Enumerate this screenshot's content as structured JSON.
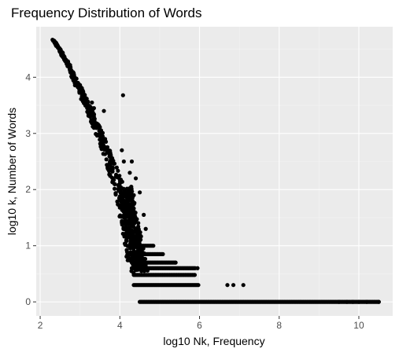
{
  "colors": {
    "panel": "#ebebeb",
    "grid_major": "#ffffff",
    "grid_minor": "#f4f4f4",
    "point": "#000000"
  },
  "chart_data": {
    "type": "scatter",
    "title": "Frequency Distribution of Words",
    "xlabel": "log10 Nk, Frequency",
    "ylabel": "log10 k, Number of Words",
    "xlim": [
      1.9,
      10.85
    ],
    "ylim": [
      -0.25,
      4.9
    ],
    "x_ticks": [
      2,
      4,
      6,
      8,
      10
    ],
    "y_ticks": [
      0,
      1,
      2,
      3,
      4
    ],
    "x_tick_labels": [
      "2",
      "4",
      "6",
      "8",
      "10"
    ],
    "y_tick_labels": [
      "0",
      "1",
      "2",
      "3",
      "4"
    ],
    "grid": true,
    "legend": "none",
    "main_trend": [
      [
        2.33,
        4.66
      ],
      [
        2.5,
        4.48
      ],
      [
        2.7,
        4.22
      ],
      [
        2.9,
        3.92
      ],
      [
        3.1,
        3.62
      ],
      [
        3.3,
        3.32
      ],
      [
        3.5,
        2.98
      ],
      [
        3.7,
        2.6
      ],
      [
        3.9,
        2.18
      ],
      [
        4.1,
        1.7
      ],
      [
        4.25,
        1.25
      ],
      [
        4.35,
        0.9
      ],
      [
        4.45,
        0.6
      ]
    ],
    "outliers": [
      [
        2.8,
        4.1
      ],
      [
        2.95,
        3.9
      ],
      [
        3.3,
        3.55
      ],
      [
        3.35,
        3.45
      ],
      [
        3.6,
        3.4
      ],
      [
        3.35,
        3.1
      ],
      [
        3.55,
        3.0
      ],
      [
        4.08,
        3.68
      ],
      [
        4.05,
        2.7
      ],
      [
        4.1,
        2.5
      ],
      [
        4.3,
        2.5
      ],
      [
        4.25,
        2.3
      ],
      [
        4.4,
        2.2
      ],
      [
        4.25,
        2.0
      ],
      [
        4.5,
        1.95
      ],
      [
        4.65,
        1.3
      ],
      [
        4.6,
        1.55
      ],
      [
        4.35,
        1.9
      ]
    ],
    "bands": [
      {
        "y": 1.0,
        "x_start": 4.3,
        "x_end": 4.85
      },
      {
        "y": 0.85,
        "x_start": 4.3,
        "x_end": 5.1
      },
      {
        "y": 0.7,
        "x_start": 4.3,
        "x_end": 5.4
      },
      {
        "y": 0.6,
        "x_start": 4.3,
        "x_end": 5.9
      },
      {
        "y": 0.48,
        "x_start": 4.35,
        "x_end": 5.9
      },
      {
        "y": 0.3,
        "x_start": 4.35,
        "x_end": 6.0
      },
      {
        "y": 0.0,
        "x_start": 4.5,
        "x_end": 10.5
      }
    ],
    "band_extra_points": [
      [
        5.4,
        0.7
      ],
      [
        5.95,
        0.6
      ],
      [
        6.7,
        0.3
      ],
      [
        6.85,
        0.3
      ],
      [
        7.1,
        0.3
      ],
      [
        9.5,
        0.0
      ],
      [
        9.7,
        0.0
      ],
      [
        9.85,
        0.0
      ],
      [
        10.0,
        0.0
      ],
      [
        10.2,
        0.0
      ],
      [
        10.5,
        0.0
      ]
    ]
  }
}
